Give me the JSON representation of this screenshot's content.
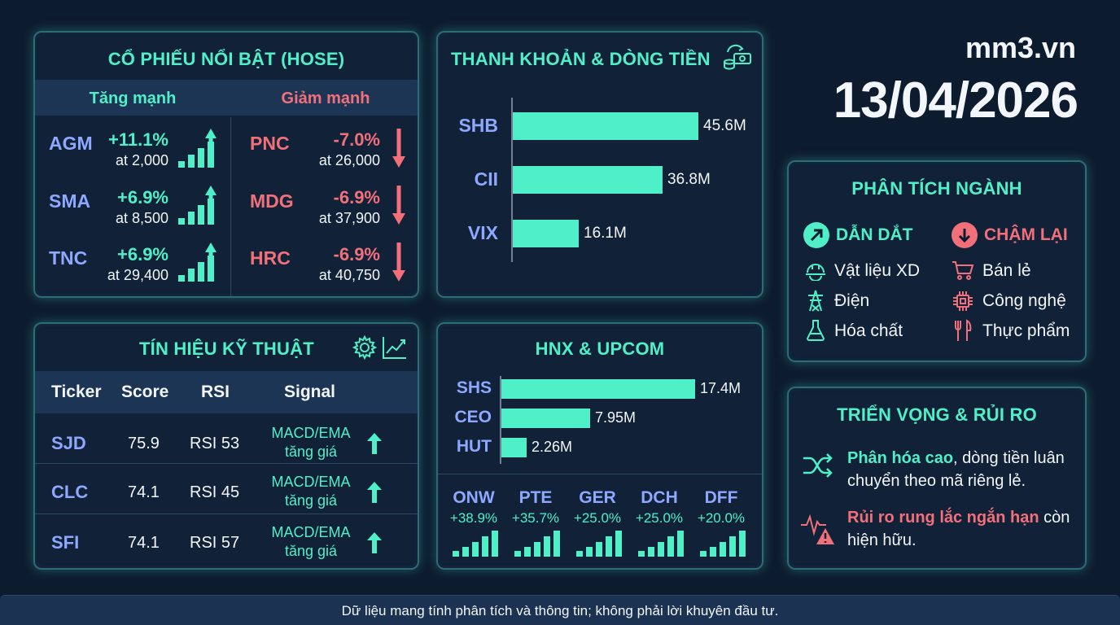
{
  "site": "mm3.vn",
  "date": "13/04/2026",
  "hose": {
    "title": "CỔ PHIẾU NỔI BẬT (HOSE)",
    "up_label": "Tăng mạnh",
    "down_label": "Giảm mạnh",
    "gainers": [
      {
        "ticker": "AGM",
        "change": "+11.1%",
        "price": "at 2,000"
      },
      {
        "ticker": "SMA",
        "change": "+6.9%",
        "price": "at 8,500"
      },
      {
        "ticker": "TNC",
        "change": "+6.9%",
        "price": "at 29,400"
      }
    ],
    "losers": [
      {
        "ticker": "PNC",
        "change": "-7.0%",
        "price": "at 26,000"
      },
      {
        "ticker": "MDG",
        "change": "-6.9%",
        "price": "at 37,900"
      },
      {
        "ticker": "HRC",
        "change": "-6.9%",
        "price": "at 40,750"
      }
    ]
  },
  "liquidity": {
    "title": "THANH KHOẢN & DÒNG TIỀN",
    "icon": "money-flow-icon",
    "items": [
      {
        "ticker": "SHB",
        "value": 45.6,
        "label": "45.6M"
      },
      {
        "ticker": "CII",
        "value": 36.8,
        "label": "36.8M"
      },
      {
        "ticker": "VIX",
        "value": 16.1,
        "label": "16.1M"
      }
    ]
  },
  "technical": {
    "title": "TÍN HIỆU KỸ THUẬT",
    "headers": [
      "Ticker",
      "Score",
      "RSI",
      "Signal"
    ],
    "rows": [
      {
        "ticker": "SJD",
        "score": "75.9",
        "rsi": "RSI 53",
        "signal1": "MACD/EMA",
        "signal2": "tăng giá"
      },
      {
        "ticker": "CLC",
        "score": "74.1",
        "rsi": "RSI 45",
        "signal1": "MACD/EMA",
        "signal2": "tăng giá"
      },
      {
        "ticker": "SFI",
        "score": "74.1",
        "rsi": "RSI 57",
        "signal1": "MACD/EMA",
        "signal2": "tăng giá"
      }
    ]
  },
  "hnx": {
    "title": "HNX & UPCOM",
    "items": [
      {
        "ticker": "SHS",
        "value": 17.4,
        "label": "17.4M"
      },
      {
        "ticker": "CEO",
        "value": 7.95,
        "label": "7.95M"
      },
      {
        "ticker": "HUT",
        "value": 2.26,
        "label": "2.26M"
      }
    ],
    "movers": [
      {
        "ticker": "ONW",
        "change": "+38.9%"
      },
      {
        "ticker": "PTE",
        "change": "+35.7%"
      },
      {
        "ticker": "GER",
        "change": "+25.0%"
      },
      {
        "ticker": "DCH",
        "change": "+25.0%"
      },
      {
        "ticker": "DFF",
        "change": "+20.0%"
      }
    ]
  },
  "sector": {
    "title": "PHÂN TÍCH NGÀNH",
    "lead_label": "DẪN DẮT",
    "lag_label": "CHẬM LẠI",
    "leading": [
      {
        "name": "Vật liệu XD",
        "icon": "hardhat-icon"
      },
      {
        "name": "Điện",
        "icon": "power-tower-icon"
      },
      {
        "name": "Hóa chất",
        "icon": "flask-icon"
      }
    ],
    "lagging": [
      {
        "name": "Bán lẻ",
        "icon": "cart-icon"
      },
      {
        "name": "Công nghệ",
        "icon": "chip-icon"
      },
      {
        "name": "Thực phẩm",
        "icon": "fork-knife-icon"
      }
    ]
  },
  "outlook": {
    "title": "TRIỂN VỌNG & RỦI RO",
    "item1_highlight": "Phân hóa cao",
    "item1_rest": ", dòng tiền luân chuyển theo mã riêng lẻ.",
    "item2_highlight": "Rủi ro rung lắc ngắn hạn",
    "item2_rest": " còn hiện hữu."
  },
  "footer": "Dữ liệu mang tính phân tích và thông tin; không phải lời khuyên đầu tư.",
  "colors": {
    "accent": "#4ff0c8",
    "negative": "#f2707a",
    "ticker": "#8ea8ff",
    "background": "#0d1b2e"
  }
}
